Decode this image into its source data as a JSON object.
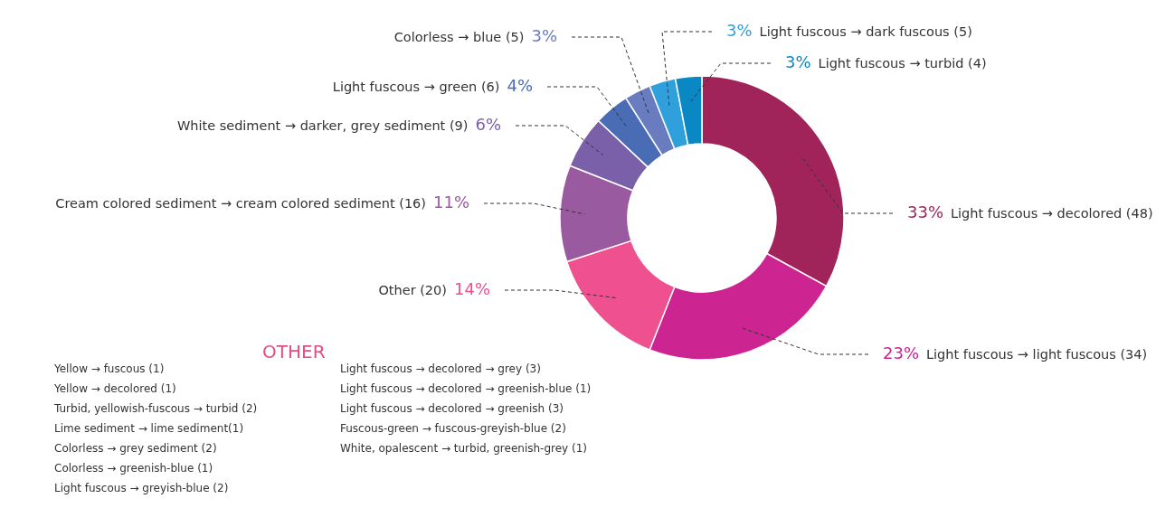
{
  "chart_data": {
    "type": "donut",
    "categories": [
      "Light fuscous → decolored (48)",
      "Light fuscous → light fuscous (34)",
      "Other (20)",
      "Cream colored sediment → cream colored sediment (16)",
      "White sediment → darker, grey sediment (9)",
      "Light fuscous → green (6)",
      "Colorless → blue (5)",
      "Light fuscous → dark fuscous (5)",
      "Light fuscous → turbid (4)"
    ],
    "values": [
      33,
      23,
      14,
      11,
      6,
      4,
      3,
      3,
      3
    ],
    "value_labels": [
      "33%",
      "23%",
      "14%",
      "11%",
      "6%",
      "4%",
      "3%",
      "3%",
      "3%"
    ],
    "colors": [
      "#a0245a",
      "#cc2490",
      "#ee5090",
      "#9a5aa0",
      "#7a60a8",
      "#4a6cb4",
      "#6a7cc0",
      "#30a0dc",
      "#0a88c4"
    ],
    "annotations": [
      "OTHER",
      "Yellow → fuscous (1)",
      "Yellow → decolored (1)",
      "Turbid, yellowish-fuscous → turbid (2)",
      "Lime sediment → lime sediment(1)",
      "Colorless → grey sediment (2)",
      "Colorless → greenish-blue (1)",
      "Light fuscous → greyish-blue (2)",
      "Light fuscous → decolored → grey (3)",
      "Light fuscous → decolored → greenish-blue (1)",
      "Light fuscous → decolored → greenish (3)",
      "Fuscous-green → fuscous-greyish-blue (2)",
      "White, opalescent → turbid, greenish-grey (1)"
    ]
  }
}
